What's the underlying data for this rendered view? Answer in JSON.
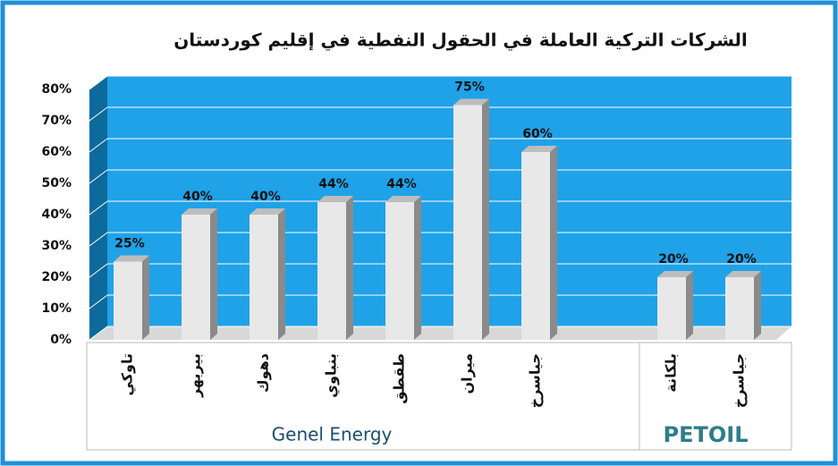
{
  "chart_data": {
    "type": "bar",
    "title": "الشركات التركية العاملة في الحقول النفطية في إقليم كوردستان",
    "groups": [
      {
        "name": "Genel Energy",
        "categories": [
          "تاوكي",
          "بيربهر",
          "دهوك",
          "بنباوي",
          "طقطق",
          "ميران",
          "جياسرخ"
        ],
        "values": [
          25,
          40,
          40,
          44,
          44,
          75,
          60
        ],
        "value_labels": [
          "25%",
          "40%",
          "40%",
          "44%",
          "44%",
          "75%",
          "60%"
        ]
      },
      {
        "name": "PETOIL",
        "categories": [
          "بلكانة",
          "جياسرخ"
        ],
        "values": [
          20,
          20
        ],
        "value_labels": [
          "20%",
          "20%"
        ]
      }
    ],
    "color": "#e8e8e8",
    "ylim": [
      0,
      80
    ],
    "yticks": [
      {
        "value": 0,
        "label": "0%"
      },
      {
        "value": 10,
        "label": "10%"
      },
      {
        "value": 20,
        "label": "20%"
      },
      {
        "value": 30,
        "label": "30%"
      },
      {
        "value": 40,
        "label": "40%"
      },
      {
        "value": 50,
        "label": "50%"
      },
      {
        "value": 60,
        "label": "60%"
      },
      {
        "value": 70,
        "label": "70%"
      },
      {
        "value": 80,
        "label": "80%"
      }
    ],
    "grid": true
  }
}
